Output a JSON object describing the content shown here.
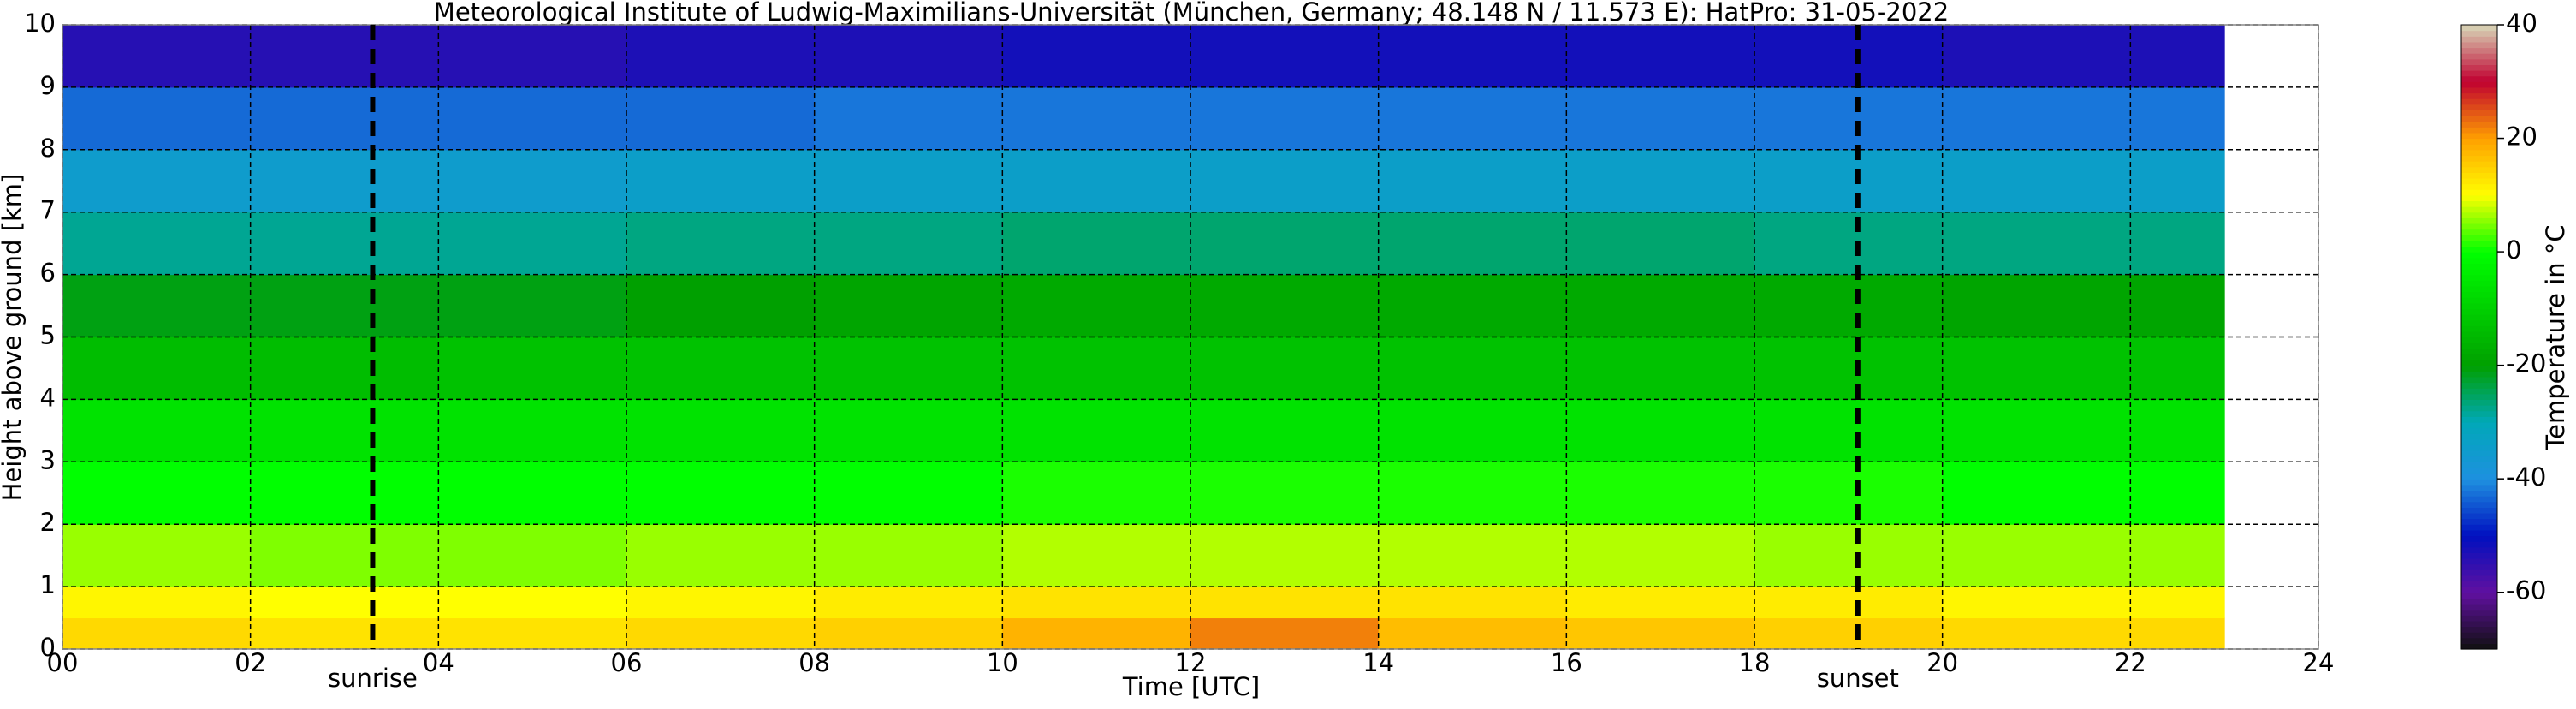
{
  "chart_data": {
    "type": "heatmap",
    "title": "Meteorological Institute of Ludwig-Maximilians-Universität (München, Germany; 48.148 N / 11.573 E):    HatPro: 31-05-2022",
    "xlabel": "Time [UTC]",
    "ylabel": "Height above ground [km]",
    "colorbar_label": "Temperature in °C",
    "x": [
      0,
      2,
      4,
      6,
      8,
      10,
      12,
      14,
      16,
      18,
      20,
      22,
      23
    ],
    "y": [
      0,
      0.5,
      1,
      2,
      3,
      4,
      5,
      6,
      7,
      8,
      9,
      10
    ],
    "values": [
      [
        14,
        13,
        13,
        14,
        15,
        18,
        22,
        17,
        16,
        15,
        14,
        14
      ],
      [
        11,
        10,
        10,
        11,
        12,
        13,
        13,
        13,
        12,
        12,
        11,
        11
      ],
      [
        6,
        5,
        5,
        6,
        6,
        7,
        7,
        7,
        7,
        6,
        6,
        6
      ],
      [
        0,
        0,
        0,
        0,
        0,
        1,
        1,
        1,
        1,
        1,
        0,
        0
      ],
      [
        -6,
        -6,
        -6,
        -6,
        -6,
        -6,
        -6,
        -6,
        -6,
        -6,
        -6,
        -6
      ],
      [
        -14,
        -14,
        -13,
        -13,
        -13,
        -13,
        -13,
        -13,
        -13,
        -13,
        -13,
        -13
      ],
      [
        -21,
        -21,
        -21,
        -20,
        -19,
        -18,
        -18,
        -18,
        -18,
        -18,
        -19,
        -19
      ],
      [
        -28,
        -28,
        -28,
        -27,
        -27,
        -26,
        -26,
        -26,
        -26,
        -27,
        -27,
        -27
      ],
      [
        -35,
        -35,
        -35,
        -34,
        -34,
        -34,
        -34,
        -34,
        -34,
        -34,
        -34,
        -34
      ],
      [
        -43,
        -43,
        -43,
        -43,
        -42,
        -42,
        -42,
        -42,
        -42,
        -42,
        -42,
        -42
      ],
      [
        -54,
        -54,
        -54,
        -53,
        -53,
        -52,
        -52,
        -52,
        -52,
        -52,
        -53,
        -53
      ]
    ],
    "xlim": [
      0,
      24
    ],
    "xticks": [
      {
        "value": 0,
        "label": "00"
      },
      {
        "value": 2,
        "label": "02"
      },
      {
        "value": 4,
        "label": "04"
      },
      {
        "value": 6,
        "label": "06"
      },
      {
        "value": 8,
        "label": "08"
      },
      10,
      12,
      14,
      16,
      18,
      20,
      22,
      24
    ],
    "ylim": [
      0,
      10
    ],
    "yticks": [
      0,
      1,
      2,
      3,
      4,
      5,
      6,
      7,
      8,
      9,
      10
    ],
    "clim": [
      -70,
      40
    ],
    "cticks": [
      -60,
      -40,
      -20,
      0,
      20,
      40
    ],
    "colormap": [
      "#101010",
      "#6010a0",
      "#0010c0",
      "#1e90e0",
      "#00a8b8",
      "#00a000",
      "#00d000",
      "#00ff00",
      "#ffff00",
      "#ffa000",
      "#c00030",
      "#d8d8b8"
    ],
    "grid": true,
    "annotations": [
      {
        "x": 3.3,
        "label": "sunrise"
      },
      {
        "x": 19.1,
        "label": "sunset"
      }
    ]
  }
}
